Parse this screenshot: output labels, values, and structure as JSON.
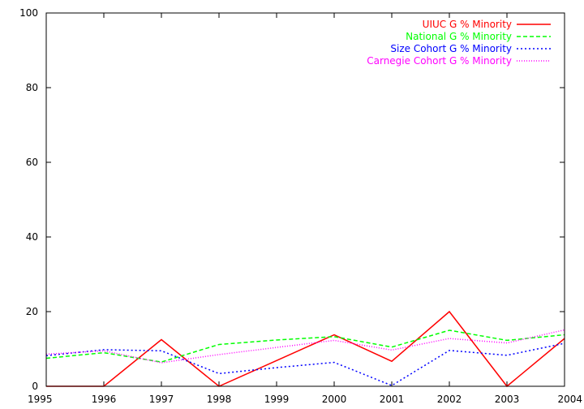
{
  "chart_data": {
    "type": "line",
    "title": "",
    "xlabel": "",
    "ylabel": "",
    "x": [
      1995,
      1996,
      1997,
      1998,
      1999,
      2000,
      2001,
      2002,
      2003,
      2004
    ],
    "xlim": [
      1995,
      2004
    ],
    "ylim": [
      0,
      100
    ],
    "xticks": [
      "1995",
      "1996",
      "1997",
      "1998",
      "1999",
      "2000",
      "2001",
      "2002",
      "2003",
      "2004"
    ],
    "yticks": [
      "0",
      "20",
      "40",
      "60",
      "80",
      "100"
    ],
    "grid": false,
    "legend_position": "top-right",
    "series": [
      {
        "name": "UIUC G % Minority",
        "color": "#ff0000",
        "style": "solid",
        "values": [
          0,
          0,
          12.5,
          0,
          6.9,
          13.8,
          6.7,
          20,
          0,
          12.8
        ]
      },
      {
        "name": "National G % Minority",
        "color": "#00ff00",
        "style": "dashed",
        "values": [
          7.5,
          9,
          6.5,
          11.2,
          12.4,
          13.3,
          10.5,
          15,
          12.3,
          13.8
        ]
      },
      {
        "name": "Size Cohort G % Minority",
        "color": "#0000ff",
        "style": "dotted",
        "values": [
          8.2,
          9.8,
          9.5,
          3.4,
          5,
          6.4,
          0.2,
          9.6,
          8.3,
          11.5
        ]
      },
      {
        "name": "Carnegie Cohort G % Minority",
        "color": "#ff00ff",
        "style": "fine-dotted",
        "values": [
          8.6,
          9.5,
          6.3,
          8.5,
          10.4,
          12.3,
          9.7,
          12.8,
          11.6,
          15.1
        ]
      }
    ]
  }
}
